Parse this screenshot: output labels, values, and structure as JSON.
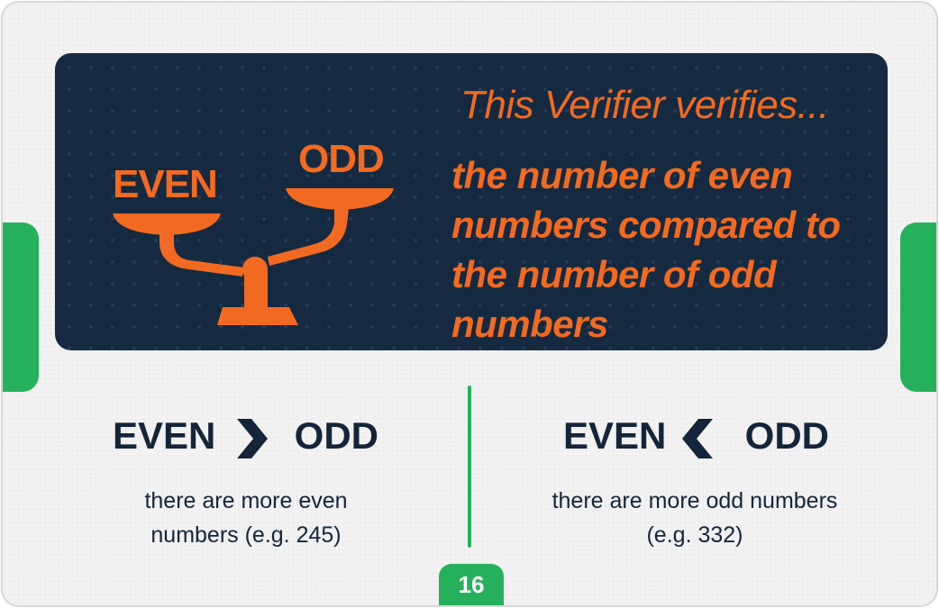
{
  "banner": {
    "scale": {
      "left_label": "EVEN",
      "right_label": "ODD",
      "color": "#f26a21"
    },
    "title": "This Verifier verifies...",
    "body": "the number of even numbers compared to the number of odd numbers"
  },
  "comparisons": [
    {
      "left_word": "EVEN",
      "symbol": "greater-than-icon",
      "right_word": "ODD",
      "description": "there are more even numbers (e.g. 245)"
    },
    {
      "left_word": "EVEN",
      "symbol": "less-than-icon",
      "right_word": "ODD",
      "description": "there are more odd numbers (e.g. 332)"
    }
  ],
  "page_number": "16",
  "colors": {
    "accent_green": "#27b05c",
    "banner_navy": "#152a40",
    "accent_orange": "#f26a21",
    "text_navy": "#14253a"
  }
}
